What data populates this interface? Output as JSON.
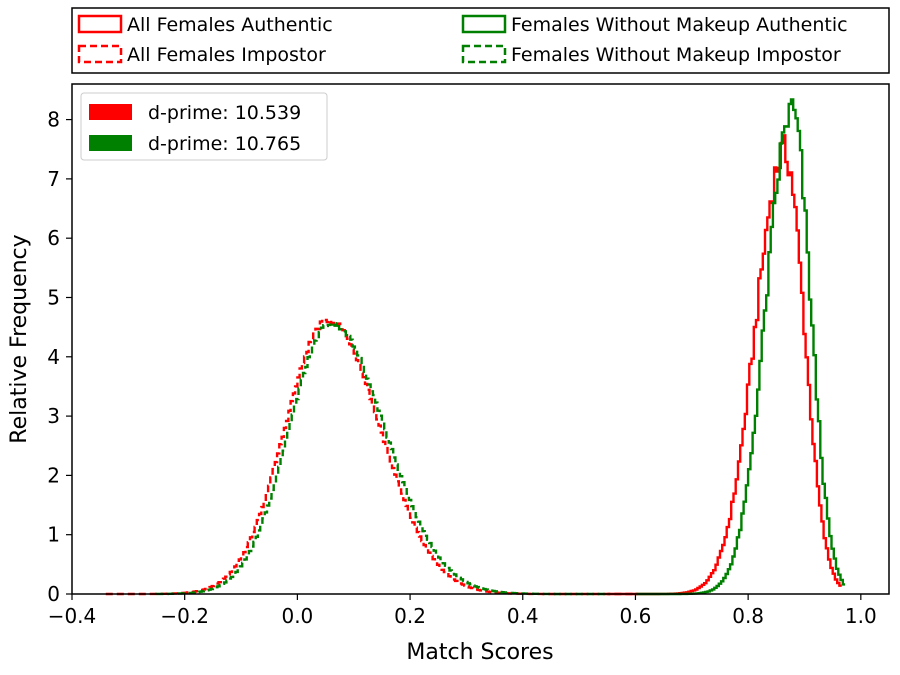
{
  "chart_data": {
    "type": "line",
    "subtype": "step-histogram",
    "title": "",
    "xlabel": "Match Scores",
    "ylabel": "Relative Frequency",
    "xlim": [
      -0.4,
      1.05
    ],
    "ylim": [
      0,
      8.6
    ],
    "x_ticks": [
      -0.4,
      -0.2,
      0.0,
      0.2,
      0.4,
      0.6,
      0.8,
      1.0
    ],
    "x_tick_labels": [
      "−0.4",
      "−0.2",
      "0.0",
      "0.2",
      "0.4",
      "0.6",
      "0.8",
      "1.0"
    ],
    "y_ticks": [
      0,
      1,
      2,
      3,
      4,
      5,
      6,
      7,
      8
    ],
    "y_tick_labels": [
      "0",
      "1",
      "2",
      "3",
      "4",
      "5",
      "6",
      "7",
      "8"
    ],
    "grid": false,
    "legend_top": {
      "placement": "above-plot",
      "entries": [
        {
          "label": "All Females Authentic",
          "color": "#ff0000",
          "style": "solid"
        },
        {
          "label": "Females Without Makeup Authentic",
          "color": "#008000",
          "style": "solid"
        },
        {
          "label": "All Females Impostor",
          "color": "#ff0000",
          "style": "dashed"
        },
        {
          "label": "Females Without Makeup Impostor",
          "color": "#008000",
          "style": "dashed"
        }
      ]
    },
    "legend_inner": {
      "placement": "upper-left",
      "entries": [
        {
          "label": "d-prime: 10.539",
          "color": "#ff0000"
        },
        {
          "label": "d-prime: 10.765",
          "color": "#008000"
        }
      ]
    },
    "series": [
      {
        "name": "All Females Authentic",
        "color": "#ff0000",
        "style": "solid",
        "dist": {
          "peak_x": 0.865,
          "peak_y": 7.45,
          "sigma_left": 0.052,
          "sigma_right": 0.035,
          "x_min": 0.55,
          "x_max": 0.965
        }
      },
      {
        "name": "Females Without Makeup Authentic",
        "color": "#008000",
        "style": "solid",
        "dist": {
          "peak_x": 0.878,
          "peak_y": 8.15,
          "sigma_left": 0.046,
          "sigma_right": 0.033,
          "x_min": 0.6,
          "x_max": 0.97
        }
      },
      {
        "name": "All Females Impostor",
        "color": "#ff0000",
        "style": "dashed",
        "dist": {
          "peak_x": 0.055,
          "peak_y": 4.62,
          "sigma_left": 0.077,
          "sigma_right": 0.092,
          "x_min": -0.34,
          "x_max": 0.6
        }
      },
      {
        "name": "Females Without Makeup Impostor",
        "color": "#008000",
        "style": "dashed",
        "dist": {
          "peak_x": 0.06,
          "peak_y": 4.57,
          "sigma_left": 0.075,
          "sigma_right": 0.096,
          "x_min": -0.25,
          "x_max": 0.55
        }
      }
    ]
  }
}
